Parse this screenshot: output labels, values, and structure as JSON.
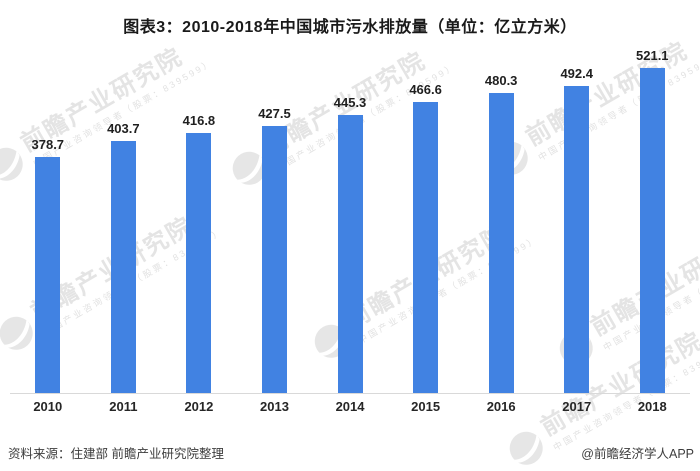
{
  "title": "图表3：2010-2018年中国城市污水排放量（单位：亿立方米）",
  "chart_data": {
    "type": "bar",
    "title": "图表3：2010-2018年中国城市污水排放量（单位：亿立方米）",
    "categories": [
      "2010",
      "2011",
      "2012",
      "2013",
      "2014",
      "2015",
      "2016",
      "2017",
      "2018"
    ],
    "values": [
      378.7,
      403.7,
      416.8,
      427.5,
      445.3,
      466.6,
      480.3,
      492.4,
      521.1
    ],
    "unit": "亿立方米",
    "xlabel": "",
    "ylabel": "",
    "ylim": [
      0,
      560
    ],
    "grid": false,
    "legend": false,
    "value_labels_shown": true,
    "bar_color": "#4182E2"
  },
  "watermark": {
    "logo_icon": "qianzhan-globe-icon",
    "main_text": "前瞻产业研究院",
    "sub_text": "中国产业咨询领导者（股票：839599）"
  },
  "footer": {
    "source": "资料来源：住建部 前瞻产业研究院整理",
    "credit": "@前瞻经济学人APP"
  },
  "colors": {
    "background": "#FFFFFF",
    "bar": "#4182E2",
    "axis_line": "#D9D9D9",
    "title_text": "#1A1A1A",
    "value_label_text": "#1F1F1F",
    "category_label_text": "#262626",
    "footer_text": "#3D3D3D",
    "watermark": "#E4E4E4"
  }
}
